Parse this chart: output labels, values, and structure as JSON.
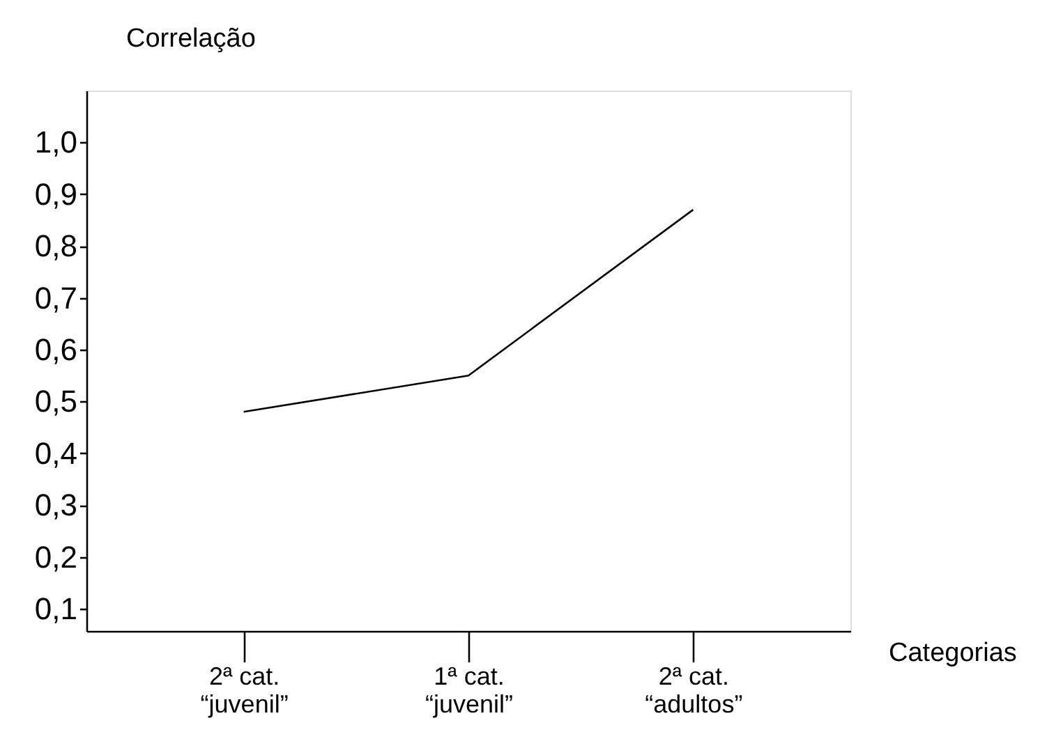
{
  "chart_data": {
    "type": "line",
    "xlabel": "Categorias",
    "ylabel": "Correlação",
    "categories": [
      "2ª cat.\n“juvenil”",
      "1ª cat.\n“juvenil”",
      "2ª cat.\n“adultos”"
    ],
    "series": [
      {
        "color": "#000000",
        "values": [
          0.48,
          0.55,
          0.87
        ]
      }
    ],
    "ylim": [
      0.057,
      1.1
    ],
    "yticks": [
      {
        "value": 0.1,
        "label": "0,1"
      },
      {
        "value": 0.2,
        "label": "0,2"
      },
      {
        "value": 0.3,
        "label": "0,3"
      },
      {
        "value": 0.4,
        "label": "0,4"
      },
      {
        "value": 0.5,
        "label": "0,5"
      },
      {
        "value": 0.6,
        "label": "0,6"
      },
      {
        "value": 0.7,
        "label": "0,7"
      },
      {
        "value": 0.8,
        "label": "0,8"
      },
      {
        "value": 0.9,
        "label": "0,9"
      },
      {
        "value": 1.0,
        "label": "1,0"
      }
    ],
    "grid": false,
    "marker": "none",
    "line_style": "solid"
  }
}
